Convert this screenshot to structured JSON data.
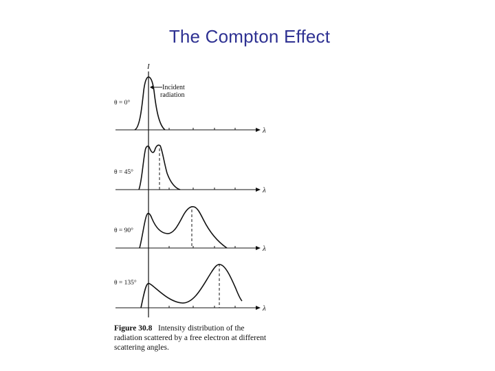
{
  "slide": {
    "title": "The Compton Effect"
  },
  "figure": {
    "y_axis_label": "I",
    "x_axis_label": "λ",
    "peak_annotation": [
      "Incident",
      "radiation"
    ],
    "panels": [
      {
        "angle_label": "θ = 0°"
      },
      {
        "angle_label": "θ = 45°"
      },
      {
        "angle_label": "θ = 90°"
      },
      {
        "angle_label": "θ = 135°"
      }
    ],
    "caption": {
      "number": "Figure 30.8",
      "text": "Intensity distribution of the radiation scattered by a free electron at different scattering angles."
    }
  }
}
